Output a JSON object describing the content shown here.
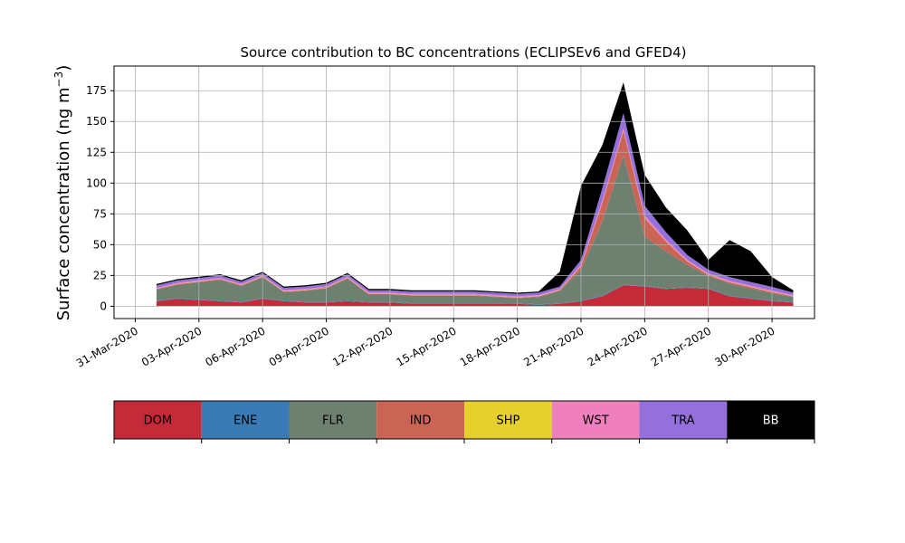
{
  "chart_data": {
    "type": "area",
    "stacked": true,
    "title": "Source contribution to BC concentrations (ECLIPSEv6 and GFED4)",
    "ylabel": "Surface concentration (ng m",
    "ylabel_superscript": "−3",
    "ylabel_suffix": ")",
    "xlabel": "",
    "ylim": [
      -10,
      195
    ],
    "xlim": [
      "2020-03-30",
      "2020-05-02"
    ],
    "grid": true,
    "yticks": [
      0,
      25,
      50,
      75,
      100,
      125,
      150,
      175
    ],
    "xticks": [
      {
        "date": "2020-03-31",
        "label": "31-Mar-2020"
      },
      {
        "date": "2020-04-03",
        "label": "03-Apr-2020"
      },
      {
        "date": "2020-04-06",
        "label": "06-Apr-2020"
      },
      {
        "date": "2020-04-09",
        "label": "09-Apr-2020"
      },
      {
        "date": "2020-04-12",
        "label": "12-Apr-2020"
      },
      {
        "date": "2020-04-15",
        "label": "15-Apr-2020"
      },
      {
        "date": "2020-04-18",
        "label": "18-Apr-2020"
      },
      {
        "date": "2020-04-21",
        "label": "21-Apr-2020"
      },
      {
        "date": "2020-04-24",
        "label": "24-Apr-2020"
      },
      {
        "date": "2020-04-27",
        "label": "27-Apr-2020"
      },
      {
        "date": "2020-04-30",
        "label": "30-Apr-2020"
      }
    ],
    "x": [
      "2020-04-01",
      "2020-04-02",
      "2020-04-03",
      "2020-04-04",
      "2020-04-05",
      "2020-04-06",
      "2020-04-07",
      "2020-04-08",
      "2020-04-09",
      "2020-04-10",
      "2020-04-11",
      "2020-04-12",
      "2020-04-13",
      "2020-04-14",
      "2020-04-15",
      "2020-04-16",
      "2020-04-17",
      "2020-04-18",
      "2020-04-19",
      "2020-04-20",
      "2020-04-21",
      "2020-04-22",
      "2020-04-23",
      "2020-04-24",
      "2020-04-25",
      "2020-04-26",
      "2020-04-27",
      "2020-04-28",
      "2020-04-29",
      "2020-04-30",
      "2020-05-01"
    ],
    "series": [
      {
        "name": "DOM",
        "color": "#c42a37",
        "values": [
          4,
          6,
          5,
          4,
          3,
          6,
          4,
          3,
          3,
          4,
          3,
          3,
          2,
          2,
          2,
          2,
          2,
          2,
          1,
          2,
          4,
          8,
          17,
          16,
          14,
          15,
          14,
          8,
          6,
          4,
          3
        ]
      },
      {
        "name": "ENE",
        "color": "#3a7bb5",
        "values": [
          0.5,
          0.5,
          0.5,
          0.5,
          0.5,
          0.5,
          0.5,
          0.5,
          0.5,
          0.5,
          0.5,
          0.5,
          0.5,
          0.5,
          0.5,
          0.5,
          0.5,
          0.5,
          0.5,
          0.5,
          0.5,
          0.5,
          0.5,
          0.5,
          0.5,
          0.5,
          0.5,
          0.5,
          0.5,
          0.5,
          0.5
        ]
      },
      {
        "name": "FLR",
        "color": "#6e8070",
        "values": [
          9,
          11,
          14,
          17,
          13,
          17,
          7,
          9,
          11,
          18,
          6,
          6,
          6,
          6,
          6,
          6,
          5,
          4,
          6,
          10,
          25,
          60,
          105,
          40,
          30,
          18,
          10,
          10,
          8,
          6,
          4
        ]
      },
      {
        "name": "IND",
        "color": "#ca6454",
        "values": [
          0.5,
          0.5,
          0.5,
          0.5,
          0.5,
          0.5,
          0.5,
          0.5,
          0.5,
          0.5,
          0.5,
          0.5,
          0.5,
          0.5,
          0.5,
          0.5,
          0.5,
          0.5,
          0.5,
          0.5,
          3,
          15,
          20,
          15,
          8,
          3,
          1,
          1,
          1,
          1,
          0.5
        ]
      },
      {
        "name": "SHP",
        "color": "#e6d02d",
        "values": [
          0.2,
          0.2,
          0.2,
          0.2,
          0.2,
          0.2,
          0.2,
          0.2,
          0.2,
          0.2,
          0.2,
          0.2,
          0.2,
          0.2,
          0.2,
          0.2,
          0.2,
          0.2,
          0.2,
          0.2,
          0.2,
          0.2,
          0.2,
          0.2,
          0.2,
          0.2,
          0.2,
          0.2,
          0.2,
          0.2,
          0.2
        ]
      },
      {
        "name": "WST",
        "color": "#f07fbd",
        "values": [
          0.8,
          0.8,
          0.8,
          0.8,
          0.8,
          0.8,
          0.8,
          0.8,
          0.8,
          0.8,
          0.8,
          0.8,
          0.8,
          0.8,
          0.8,
          0.8,
          0.8,
          0.8,
          0.8,
          0.8,
          1,
          2,
          2,
          2,
          1.5,
          1,
          1,
          1,
          1,
          1,
          0.8
        ]
      },
      {
        "name": "TRA",
        "color": "#9470dc",
        "values": [
          2,
          2,
          2,
          2,
          2,
          2,
          2,
          2,
          2,
          2,
          2,
          2,
          2,
          2,
          2,
          2,
          2,
          2,
          2,
          2,
          4,
          10,
          12,
          8,
          6,
          4,
          3,
          3,
          3,
          3,
          2
        ]
      },
      {
        "name": "BB",
        "color": "#000000",
        "values": [
          1,
          1,
          1,
          1,
          1,
          1,
          1,
          1,
          1,
          1,
          1,
          1,
          1,
          1,
          1,
          1,
          1,
          1,
          1,
          12,
          60,
          35,
          25,
          25,
          20,
          20,
          8,
          30,
          25,
          8,
          2
        ]
      }
    ],
    "legend_placement": "below",
    "legend_items": [
      {
        "label": "DOM",
        "color": "#c42a37",
        "text_color": "#000000"
      },
      {
        "label": "ENE",
        "color": "#3a7bb5",
        "text_color": "#000000"
      },
      {
        "label": "FLR",
        "color": "#6e8070",
        "text_color": "#000000"
      },
      {
        "label": "IND",
        "color": "#ca6454",
        "text_color": "#000000"
      },
      {
        "label": "SHP",
        "color": "#e6d02d",
        "text_color": "#000000"
      },
      {
        "label": "WST",
        "color": "#f07fbd",
        "text_color": "#000000"
      },
      {
        "label": "TRA",
        "color": "#9470dc",
        "text_color": "#000000"
      },
      {
        "label": "BB",
        "color": "#000000",
        "text_color": "#ffffff"
      }
    ]
  }
}
